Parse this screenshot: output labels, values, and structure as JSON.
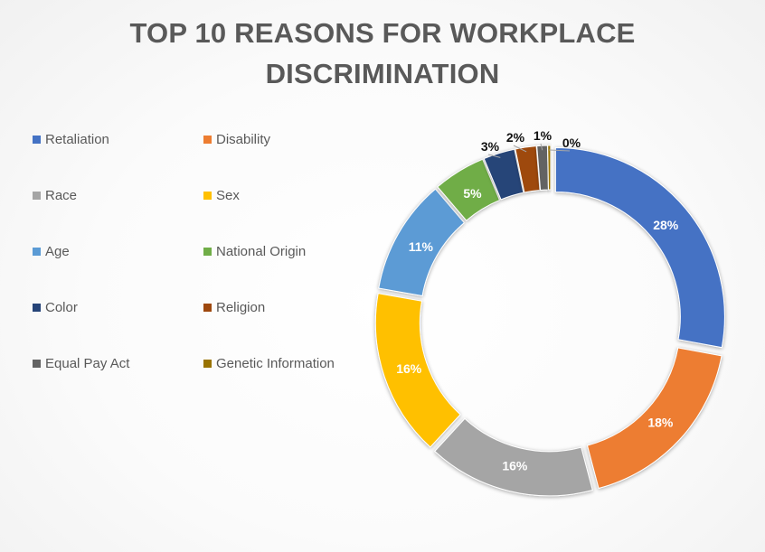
{
  "title_lines": [
    "TOP 10 REASONS FOR WORKPLACE",
    "DISCRIMINATION"
  ],
  "chart_data": {
    "type": "pie",
    "variant": "doughnut",
    "title": "TOP 10 REASONS FOR WORKPLACE DISCRIMINATION",
    "legend_position": "left",
    "categories": [
      "Retaliation",
      "Disability",
      "Race",
      "Sex",
      "Age",
      "National Origin",
      "Color",
      "Religion",
      "Equal Pay Act",
      "Genetic Information"
    ],
    "values": [
      28,
      18,
      16,
      16,
      11,
      5,
      3,
      2,
      1,
      0
    ],
    "labels": [
      "28%",
      "18%",
      "16%",
      "16%",
      "11%",
      "5%",
      "3%",
      "2%",
      "1%",
      "0%"
    ],
    "colors": [
      "#4472c4",
      "#ed7d31",
      "#a5a5a5",
      "#ffc000",
      "#5b9bd5",
      "#70ad47",
      "#264478",
      "#9e480e",
      "#636363",
      "#997300"
    ]
  }
}
